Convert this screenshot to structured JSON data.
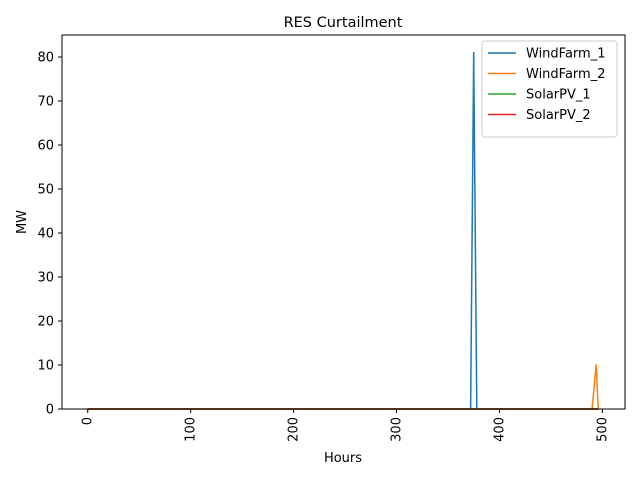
{
  "chart_data": {
    "type": "line",
    "title": "RES Curtailment",
    "xlabel": "Hours",
    "ylabel": "MW",
    "xlim": [
      -25,
      522
    ],
    "ylim": [
      0,
      85
    ],
    "xticks": [
      0,
      100,
      200,
      300,
      400,
      500
    ],
    "yticks": [
      0,
      10,
      20,
      30,
      40,
      50,
      60,
      70,
      80
    ],
    "x_tick_rotation": 90,
    "grid": false,
    "legend_position": "top-right",
    "series": [
      {
        "name": "WindFarm_1",
        "color": "#1f77b4",
        "x": [
          0,
          372,
          375,
          378,
          496
        ],
        "y": [
          0,
          0,
          81,
          0,
          0
        ]
      },
      {
        "name": "WindFarm_2",
        "color": "#ff7f0e",
        "x": [
          0,
          490,
          494,
          496
        ],
        "y": [
          0,
          0,
          10,
          0
        ]
      },
      {
        "name": "SolarPV_1",
        "color": "#2ca02c",
        "x": [
          0,
          496
        ],
        "y": [
          0,
          0
        ]
      },
      {
        "name": "SolarPV_2",
        "color": "#d62728",
        "x": [
          0,
          496
        ],
        "y": [
          0,
          0
        ]
      }
    ]
  }
}
